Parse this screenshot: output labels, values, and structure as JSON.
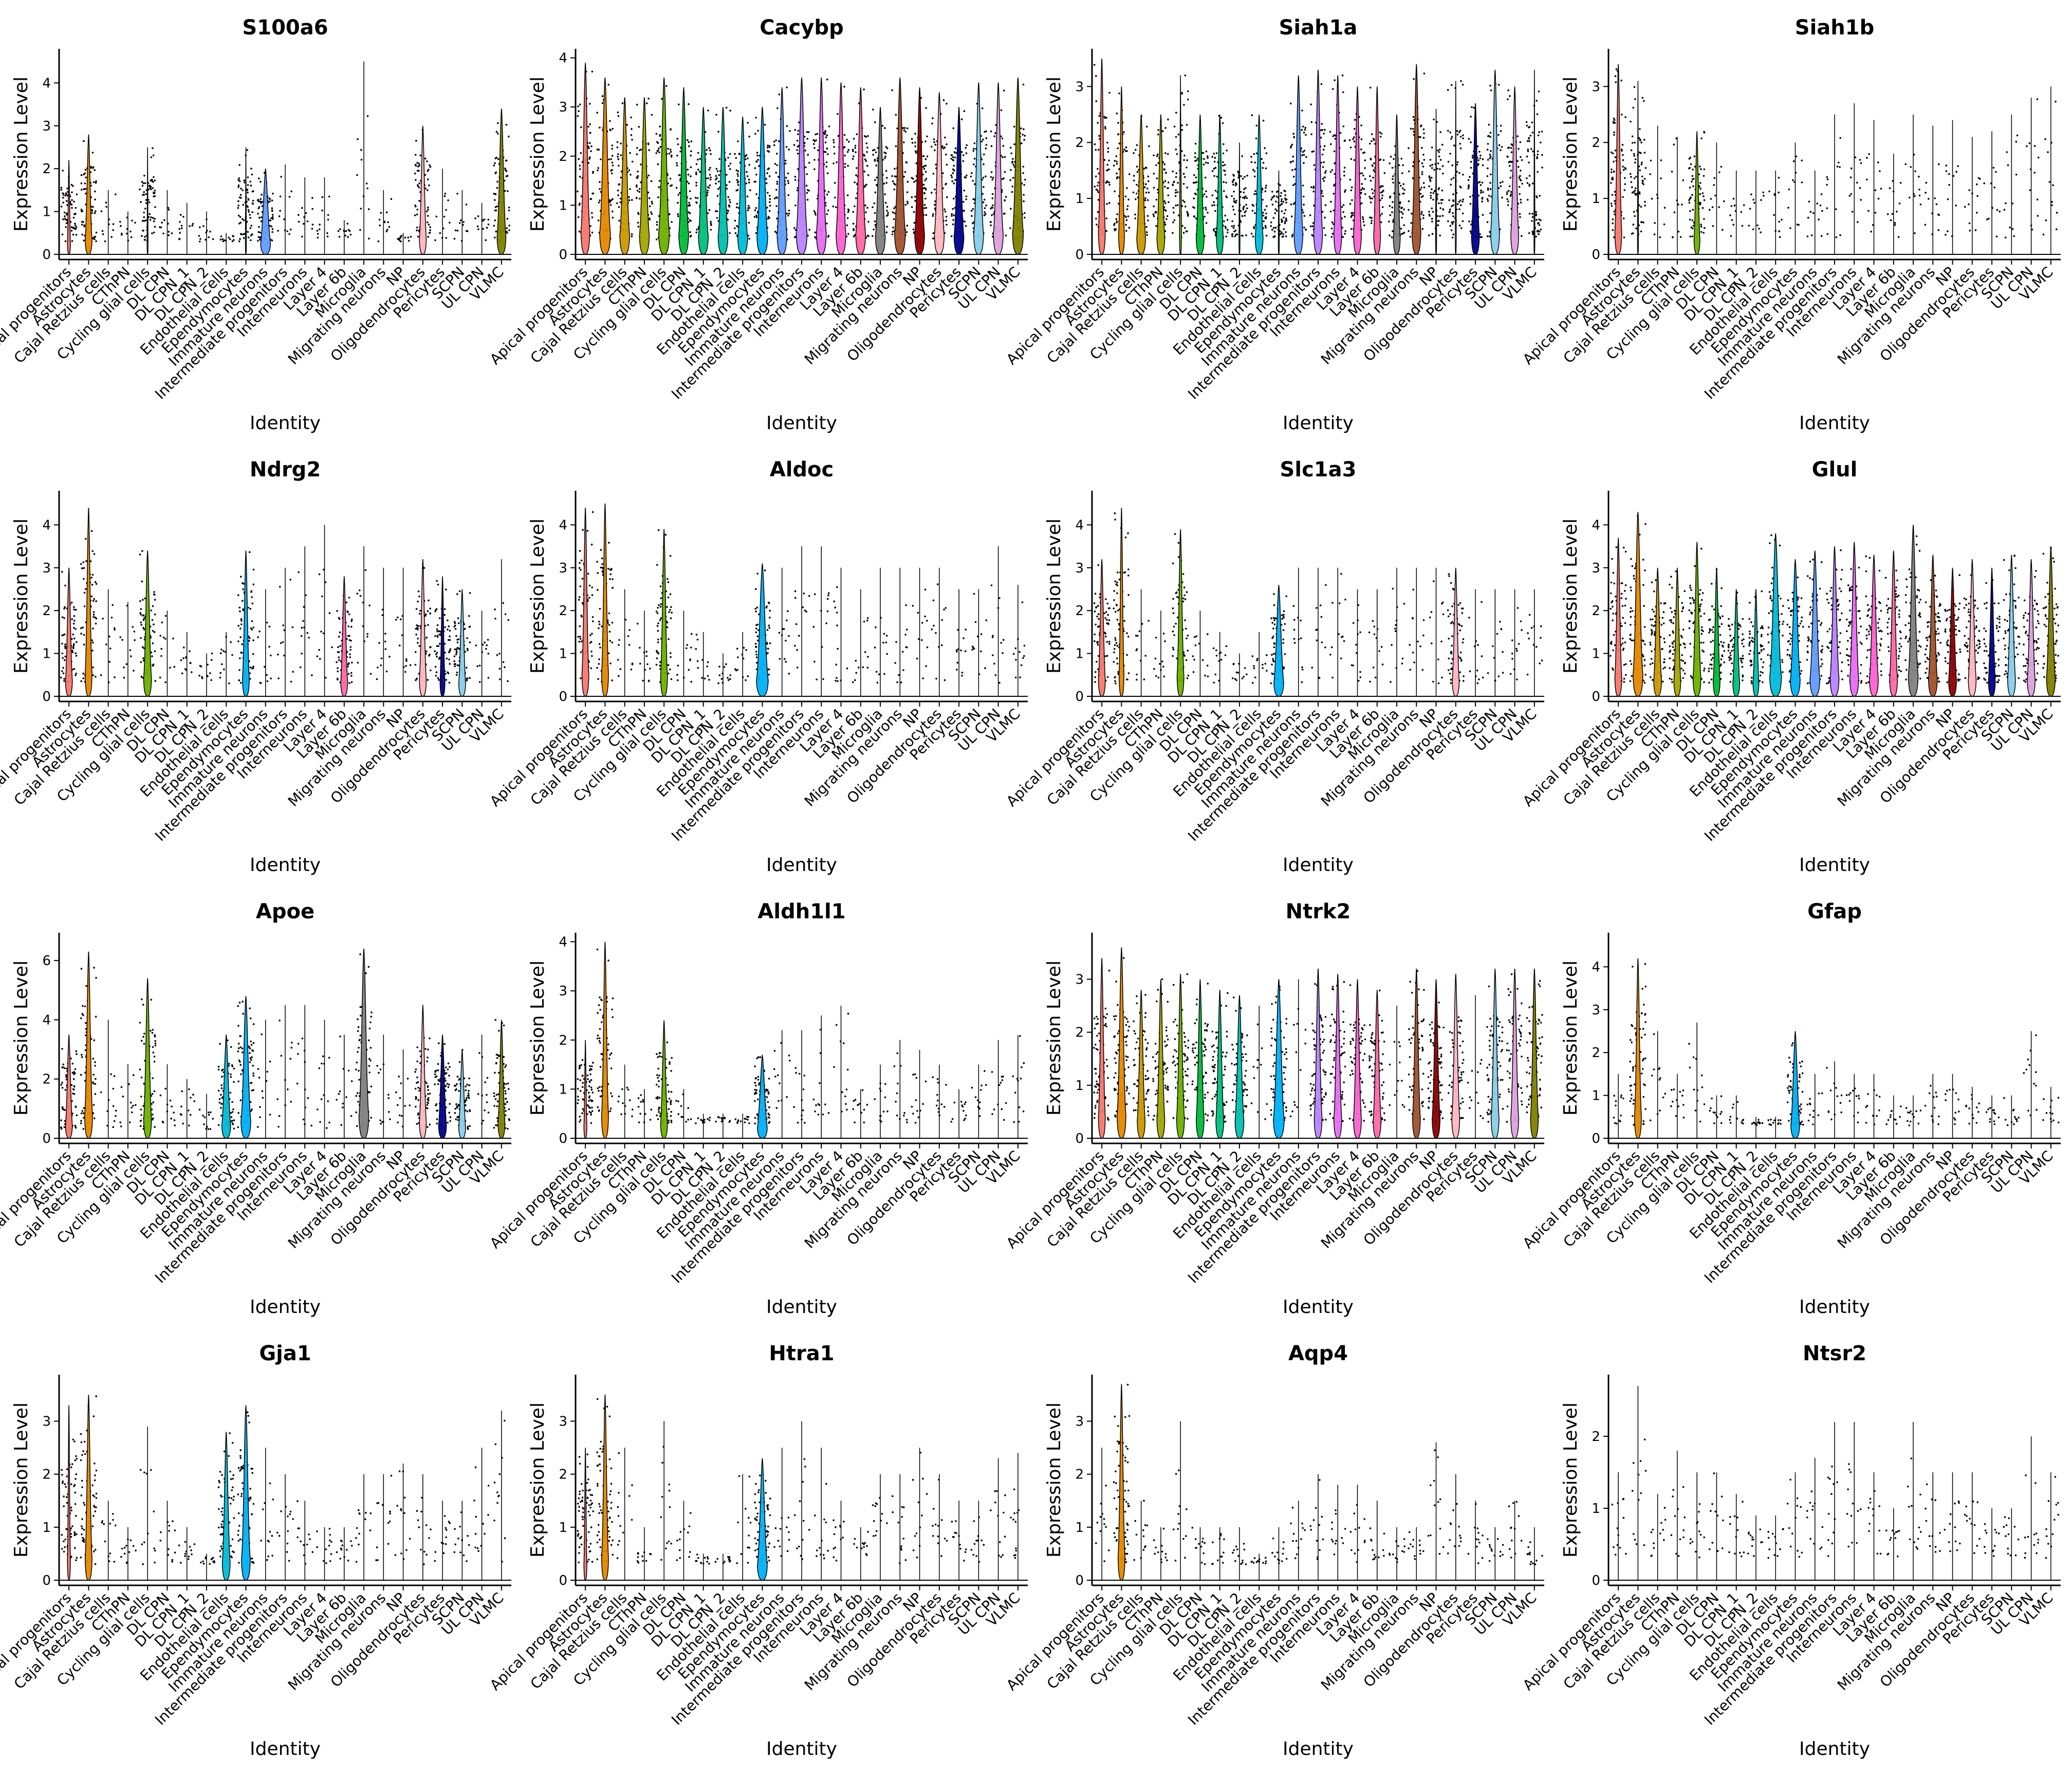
{
  "figure": {
    "categories": [
      "Apical progenitors",
      "Astrocytes",
      "Cajal Retzius cells",
      "CThPN",
      "Cycling glial cells",
      "DL CPN",
      "DL CPN_1",
      "DL CPN_2",
      "Endothelial cells",
      "Ependymocytes",
      "Immature neurons",
      "Intermediate progenitors",
      "Interneurons",
      "Layer 4",
      "Layer 6b",
      "Microglia",
      "Migrating neurons",
      "NP",
      "Oligodendrocytes",
      "Pericytes",
      "SCPN",
      "UL CPN",
      "VLMC"
    ],
    "palette": [
      "#F8766D",
      "#E58700",
      "#C99800",
      "#A3A500",
      "#6BB100",
      "#00BA38",
      "#00BF7D",
      "#00C0AF",
      "#00BCD8",
      "#00B0F6",
      "#619CFF",
      "#B983FF",
      "#E76BF3",
      "#FD61D1",
      "#FF67A4",
      "#7F7F7F",
      "#A0522D",
      "#8B0000",
      "#FFB6C1",
      "#00008B",
      "#87CEEB",
      "#DDA0DD",
      "#808000"
    ]
  },
  "chart_data": [
    {
      "type": "violin",
      "title": "S100a6",
      "xlabel": "Identity",
      "ylabel": "Expression Level",
      "ylim": [
        0,
        4.7
      ],
      "yticks": [
        0,
        1,
        2,
        3,
        4
      ],
      "max": [
        2.2,
        2.8,
        1.5,
        1.0,
        2.5,
        1.5,
        1.2,
        1.0,
        0.5,
        2.5,
        2.0,
        2.1,
        1.8,
        1.8,
        0.8,
        4.5,
        1.5,
        0.5,
        3.0,
        2.0,
        1.5,
        1.2,
        3.4
      ],
      "width": [
        0.15,
        0.35,
        0,
        0,
        0.05,
        0,
        0,
        0,
        0,
        0.05,
        0.5,
        0,
        0,
        0,
        0,
        0,
        0,
        0,
        0.35,
        0,
        0,
        0,
        0.45
      ]
    },
    {
      "type": "violin",
      "title": "Cacybp",
      "xlabel": "Identity",
      "ylabel": "Expression Level",
      "ylim": [
        0,
        4.1
      ],
      "yticks": [
        0,
        1,
        2,
        3,
        4
      ],
      "max": [
        3.9,
        3.6,
        3.2,
        3.2,
        3.6,
        3.4,
        3.0,
        3.0,
        2.8,
        3.0,
        3.4,
        3.6,
        3.6,
        3.5,
        3.4,
        3.0,
        3.6,
        3.4,
        3.3,
        3.0,
        3.5,
        3.5,
        3.6
      ],
      "width": [
        0.45,
        0.55,
        0.5,
        0.5,
        0.55,
        0.5,
        0.5,
        0.5,
        0.5,
        0.55,
        0.5,
        0.55,
        0.5,
        0.5,
        0.5,
        0.5,
        0.55,
        0.5,
        0.5,
        0.5,
        0.5,
        0.5,
        0.55
      ]
    },
    {
      "type": "violin",
      "title": "Siah1a",
      "xlabel": "Identity",
      "ylabel": "Expression Level",
      "ylim": [
        0,
        3.6
      ],
      "yticks": [
        0,
        1,
        2,
        3
      ],
      "max": [
        3.5,
        3.0,
        2.5,
        2.5,
        3.2,
        2.5,
        2.5,
        2.0,
        2.5,
        1.5,
        3.2,
        3.3,
        3.2,
        3.0,
        3.0,
        2.5,
        3.4,
        2.6,
        3.1,
        2.7,
        3.3,
        3.0,
        3.3
      ],
      "width": [
        0.35,
        0.3,
        0.45,
        0.4,
        0.1,
        0.4,
        0.35,
        0.05,
        0.4,
        0.05,
        0.45,
        0.45,
        0.4,
        0.4,
        0.35,
        0.35,
        0.45,
        0.05,
        0.05,
        0.4,
        0.45,
        0.4,
        0.05
      ]
    },
    {
      "type": "violin",
      "title": "Siah1b",
      "xlabel": "Identity",
      "ylabel": "Expression Level",
      "ylim": [
        0,
        3.6
      ],
      "yticks": [
        0,
        1,
        2,
        3
      ],
      "max": [
        3.4,
        3.1,
        2.3,
        2.1,
        2.2,
        2.0,
        1.5,
        1.5,
        1.5,
        2.0,
        1.5,
        2.5,
        2.7,
        2.4,
        1.8,
        2.5,
        2.3,
        2.4,
        2.1,
        2.2,
        2.5,
        2.8,
        3.0
      ],
      "width": [
        0.35,
        0.05,
        0,
        0,
        0.3,
        0,
        0,
        0,
        0,
        0,
        0,
        0,
        0,
        0,
        0,
        0,
        0,
        0,
        0,
        0,
        0,
        0,
        0
      ]
    },
    {
      "type": "violin",
      "title": "Ndrg2",
      "xlabel": "Identity",
      "ylabel": "Expression Level",
      "ylim": [
        0,
        4.7
      ],
      "yticks": [
        0,
        1,
        2,
        3,
        4
      ],
      "max": [
        3.0,
        4.4,
        2.5,
        2.2,
        3.4,
        2.0,
        1.5,
        1.0,
        1.5,
        3.4,
        2.5,
        3.0,
        3.5,
        4.0,
        2.8,
        3.5,
        3.0,
        3.0,
        3.2,
        2.8,
        2.5,
        2.0,
        3.2
      ],
      "width": [
        0.35,
        0.35,
        0,
        0,
        0.4,
        0,
        0,
        0,
        0,
        0.35,
        0,
        0,
        0,
        0,
        0.35,
        0,
        0,
        0,
        0.35,
        0.25,
        0.35,
        0,
        0
      ]
    },
    {
      "type": "violin",
      "title": "Aldoc",
      "xlabel": "Identity",
      "ylabel": "Expression Level",
      "ylim": [
        0,
        4.7
      ],
      "yticks": [
        0,
        1,
        2,
        3,
        4
      ],
      "max": [
        4.4,
        4.5,
        2.5,
        2.0,
        3.9,
        2.0,
        1.5,
        1.0,
        1.5,
        3.1,
        3.0,
        3.5,
        3.5,
        3.0,
        2.5,
        3.0,
        3.0,
        3.0,
        3.0,
        2.5,
        2.5,
        3.5,
        2.6
      ],
      "width": [
        0.35,
        0.35,
        0,
        0,
        0.35,
        0,
        0,
        0,
        0,
        0.6,
        0,
        0,
        0,
        0,
        0,
        0,
        0,
        0,
        0,
        0,
        0,
        0,
        0
      ]
    },
    {
      "type": "violin",
      "title": "Slc1a3",
      "xlabel": "Identity",
      "ylabel": "Expression Level",
      "ylim": [
        0,
        4.7
      ],
      "yticks": [
        0,
        1,
        2,
        3,
        4
      ],
      "max": [
        3.2,
        4.4,
        2.5,
        2.0,
        3.9,
        2.0,
        1.5,
        1.0,
        1.5,
        2.6,
        3.0,
        3.0,
        3.0,
        2.5,
        2.5,
        3.0,
        3.0,
        3.0,
        3.0,
        2.5,
        2.5,
        2.5,
        2.5
      ],
      "width": [
        0.35,
        0.25,
        0,
        0,
        0.35,
        0,
        0,
        0,
        0,
        0.5,
        0,
        0,
        0,
        0,
        0,
        0,
        0,
        0,
        0.35,
        0,
        0,
        0,
        0
      ]
    },
    {
      "type": "violin",
      "title": "Glul",
      "xlabel": "Identity",
      "ylabel": "Expression Level",
      "ylim": [
        0,
        4.7
      ],
      "yticks": [
        0,
        1,
        2,
        3,
        4
      ],
      "max": [
        3.7,
        4.3,
        3.0,
        3.0,
        3.6,
        3.0,
        2.5,
        2.5,
        3.8,
        3.2,
        3.4,
        3.5,
        3.6,
        3.3,
        3.4,
        4.0,
        3.3,
        3.0,
        3.2,
        3.0,
        3.3,
        3.2,
        3.5
      ],
      "width": [
        0.35,
        0.5,
        0.4,
        0.35,
        0.4,
        0.35,
        0.35,
        0.3,
        0.6,
        0.5,
        0.5,
        0.45,
        0.45,
        0.45,
        0.4,
        0.5,
        0.45,
        0.4,
        0.4,
        0.35,
        0.4,
        0.4,
        0.45
      ]
    },
    {
      "type": "violin",
      "title": "Apoe",
      "xlabel": "Identity",
      "ylabel": "Expression Level",
      "ylim": [
        0,
        6.8
      ],
      "yticks": [
        0,
        2,
        4,
        6
      ],
      "max": [
        3.5,
        6.3,
        4.0,
        2.5,
        5.4,
        2.5,
        2.0,
        1.5,
        3.5,
        4.8,
        4.0,
        4.5,
        4.5,
        4.0,
        3.5,
        6.4,
        3.5,
        3.0,
        4.5,
        3.5,
        3.0,
        3.5,
        4.0
      ],
      "width": [
        0.35,
        0.4,
        0,
        0,
        0.4,
        0,
        0,
        0,
        0.45,
        0.5,
        0,
        0,
        0,
        0,
        0,
        0.5,
        0,
        0,
        0.35,
        0.4,
        0.35,
        0,
        0.35
      ]
    },
    {
      "type": "violin",
      "title": "Aldh1l1",
      "xlabel": "Identity",
      "ylabel": "Expression Level",
      "ylim": [
        0,
        4.1
      ],
      "yticks": [
        0,
        1,
        2,
        3,
        4
      ],
      "max": [
        2.0,
        4.0,
        1.5,
        1.0,
        2.4,
        1.0,
        0.5,
        0.5,
        0.5,
        1.7,
        2.2,
        2.2,
        2.5,
        2.7,
        1.0,
        1.5,
        2.0,
        1.8,
        1.5,
        1.0,
        1.5,
        2.0,
        2.1
      ],
      "width": [
        0.15,
        0.35,
        0,
        0,
        0.35,
        0,
        0,
        0,
        0,
        0.5,
        0,
        0,
        0,
        0,
        0,
        0,
        0,
        0,
        0,
        0,
        0,
        0,
        0
      ]
    },
    {
      "type": "violin",
      "title": "Ntrk2",
      "xlabel": "Identity",
      "ylabel": "Expression Level",
      "ylim": [
        0,
        3.8
      ],
      "yticks": [
        0,
        1,
        2,
        3
      ],
      "max": [
        3.4,
        3.6,
        2.8,
        3.0,
        3.1,
        3.0,
        2.8,
        2.7,
        2.5,
        3.0,
        3.0,
        3.2,
        3.1,
        3.0,
        2.8,
        2.5,
        3.2,
        3.0,
        3.1,
        2.7,
        3.2,
        3.2,
        3.2
      ],
      "width": [
        0.35,
        0.45,
        0.4,
        0.4,
        0.4,
        0.4,
        0.4,
        0.45,
        0,
        0.55,
        0,
        0.4,
        0.4,
        0.4,
        0.4,
        0,
        0.4,
        0.4,
        0.4,
        0,
        0.4,
        0.4,
        0.4
      ]
    },
    {
      "type": "violin",
      "title": "Gfap",
      "xlabel": "Identity",
      "ylabel": "Expression Level",
      "ylim": [
        0,
        4.7
      ],
      "yticks": [
        0,
        1,
        2,
        3,
        4
      ],
      "max": [
        1.5,
        4.2,
        2.5,
        1.5,
        2.7,
        1.0,
        1.0,
        0.5,
        0.5,
        2.5,
        1.5,
        1.8,
        1.5,
        1.5,
        1.0,
        1.0,
        1.5,
        1.5,
        1.2,
        1.0,
        1.0,
        2.5,
        1.2
      ],
      "width": [
        0,
        0.35,
        0,
        0,
        0,
        0,
        0,
        0,
        0,
        0.45,
        0,
        0,
        0,
        0,
        0,
        0,
        0,
        0,
        0,
        0,
        0,
        0,
        0
      ]
    },
    {
      "type": "violin",
      "title": "Gja1",
      "xlabel": "Identity",
      "ylabel": "Expression Level",
      "ylim": [
        0,
        3.8
      ],
      "yticks": [
        0,
        1,
        2,
        3
      ],
      "max": [
        3.3,
        3.5,
        1.5,
        1.0,
        2.9,
        1.5,
        1.0,
        0.5,
        2.8,
        3.3,
        2.5,
        2.0,
        1.5,
        1.0,
        1.0,
        2.0,
        2.0,
        2.2,
        2.0,
        1.5,
        1.5,
        2.5,
        3.2
      ],
      "width": [
        0.15,
        0.35,
        0,
        0,
        0,
        0,
        0,
        0,
        0.4,
        0.45,
        0,
        0,
        0,
        0,
        0,
        0,
        0,
        0,
        0,
        0,
        0,
        0,
        0
      ]
    },
    {
      "type": "violin",
      "title": "Htra1",
      "xlabel": "Identity",
      "ylabel": "Expression Level",
      "ylim": [
        0,
        3.8
      ],
      "yticks": [
        0,
        1,
        2,
        3
      ],
      "max": [
        2.5,
        3.5,
        2.5,
        1.0,
        3.0,
        1.5,
        0.5,
        0.5,
        2.0,
        2.3,
        2.5,
        3.0,
        2.5,
        1.5,
        1.0,
        2.0,
        2.0,
        2.5,
        2.0,
        1.5,
        1.5,
        2.3,
        2.4
      ],
      "width": [
        0.15,
        0.35,
        0,
        0,
        0,
        0,
        0,
        0,
        0,
        0.5,
        0,
        0,
        0,
        0,
        0,
        0,
        0,
        0,
        0,
        0,
        0,
        0,
        0
      ]
    },
    {
      "type": "violin",
      "title": "Aqp4",
      "xlabel": "Identity",
      "ylabel": "Expression Level",
      "ylim": [
        0,
        3.8
      ],
      "yticks": [
        0,
        1,
        2,
        3
      ],
      "max": [
        2.5,
        3.7,
        1.5,
        1.0,
        3.0,
        1.0,
        1.0,
        1.0,
        0.5,
        1.0,
        1.5,
        2.0,
        1.8,
        1.8,
        1.5,
        1.0,
        1.0,
        2.6,
        2.0,
        1.5,
        1.0,
        1.5,
        1.0
      ],
      "width": [
        0,
        0.35,
        0,
        0,
        0,
        0,
        0,
        0,
        0,
        0,
        0,
        0,
        0,
        0,
        0,
        0,
        0,
        0,
        0,
        0,
        0,
        0,
        0
      ]
    },
    {
      "type": "violin",
      "title": "Ntsr2",
      "xlabel": "Identity",
      "ylabel": "Expression Level",
      "ylim": [
        0,
        2.8
      ],
      "yticks": [
        0,
        1,
        2
      ],
      "max": [
        1.5,
        2.7,
        1.2,
        1.8,
        1.5,
        1.5,
        1.2,
        0.9,
        0.9,
        1.5,
        1.7,
        2.2,
        2.2,
        1.5,
        1.0,
        2.2,
        1.5,
        1.5,
        1.5,
        1.0,
        1.0,
        2.0,
        1.5
      ],
      "width": [
        0,
        0,
        0,
        0,
        0,
        0,
        0,
        0,
        0,
        0,
        0,
        0,
        0,
        0,
        0,
        0,
        0,
        0,
        0,
        0,
        0,
        0,
        0
      ]
    }
  ]
}
